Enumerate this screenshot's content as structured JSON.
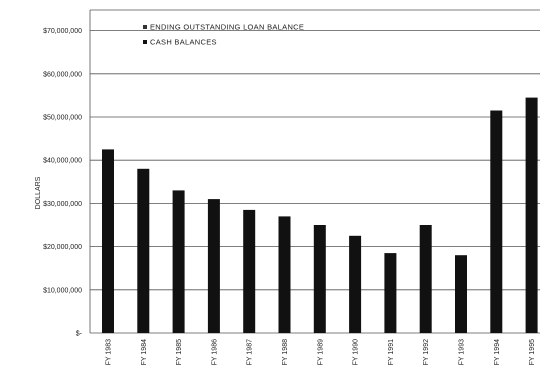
{
  "chart_data": {
    "type": "bar",
    "title": "",
    "xlabel": "",
    "ylabel": "DOLLARS",
    "categories": [
      "FY 1983",
      "FY 1984",
      "FY 1985",
      "FY 1986",
      "FY 1987",
      "FY 1988",
      "FY 1989",
      "FY 1990",
      "FY 1991",
      "FY 1992",
      "FY 1993",
      "FY 1994",
      "FY 1995"
    ],
    "series": [
      {
        "name": "ENDING OUTSTANDING LOAN BALANCE",
        "values": [
          0,
          0,
          0,
          0,
          0,
          0,
          0,
          0,
          0,
          0,
          0,
          0,
          0
        ]
      },
      {
        "name": "CASH BALANCES",
        "values": [
          42500000,
          38000000,
          33000000,
          31000000,
          28500000,
          27000000,
          25000000,
          22500000,
          18500000,
          25000000,
          18000000,
          51500000,
          54500000
        ]
      }
    ],
    "yticks": [
      "$-",
      "$10,000,000",
      "$20,000,000",
      "$30,000,000",
      "$40,000,000",
      "$50,000,000",
      "$60,000,000",
      "$70,000,000"
    ],
    "ylim": [
      0,
      70000000
    ],
    "grid": true,
    "legend_position": "top",
    "colors": {
      "bar": "#111111",
      "grid": "#555555",
      "text": "#222222"
    }
  }
}
